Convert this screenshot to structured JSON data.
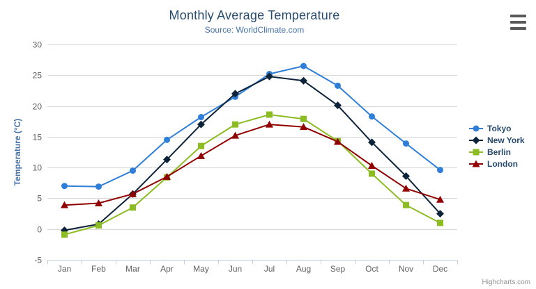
{
  "chart_data": {
    "type": "line",
    "title": "Monthly Average Temperature",
    "subtitle": "Source: WorldClimate.com",
    "xlabel": "",
    "ylabel": "Temperature (°C)",
    "categories": [
      "Jan",
      "Feb",
      "Mar",
      "Apr",
      "May",
      "Jun",
      "Jul",
      "Aug",
      "Sep",
      "Oct",
      "Nov",
      "Dec"
    ],
    "ylim": [
      -5,
      30
    ],
    "yticks": [
      -5,
      0,
      5,
      10,
      15,
      20,
      25,
      30
    ],
    "grid": true,
    "legend_position": "right",
    "series": [
      {
        "name": "Tokyo",
        "color": "#2f7ed8",
        "marker": "circle",
        "values": [
          7.0,
          6.9,
          9.5,
          14.5,
          18.2,
          21.5,
          25.2,
          26.5,
          23.3,
          18.3,
          13.9,
          9.6
        ]
      },
      {
        "name": "New York",
        "color": "#0d233a",
        "marker": "diamond",
        "values": [
          -0.2,
          0.8,
          5.7,
          11.3,
          17.0,
          22.0,
          24.8,
          24.1,
          20.1,
          14.1,
          8.6,
          2.5
        ]
      },
      {
        "name": "Berlin",
        "color": "#8bbc21",
        "marker": "square",
        "values": [
          -0.9,
          0.6,
          3.5,
          8.4,
          13.5,
          17.0,
          18.6,
          17.9,
          14.3,
          9.0,
          3.9,
          1.0
        ]
      },
      {
        "name": "London",
        "color": "#910000",
        "marker": "triangle",
        "values": [
          3.9,
          4.2,
          5.7,
          8.5,
          11.9,
          15.2,
          17.0,
          16.6,
          14.2,
          10.3,
          6.6,
          4.8
        ]
      }
    ]
  },
  "colors": {
    "title": "#274b6d",
    "subtitle": "#4572a7",
    "y_axis_title": "#4572a7",
    "axis_labels": "#606060",
    "grid_line": "#d8d8d8",
    "axis_line": "#c0d0e0",
    "legend_text": "#274b6d",
    "credits_text": "#909090",
    "export_icon": "#595959"
  },
  "credits": {
    "label": "Highcharts.com"
  },
  "export_menu": {
    "icon": "hamburger-icon",
    "bars": 3
  }
}
